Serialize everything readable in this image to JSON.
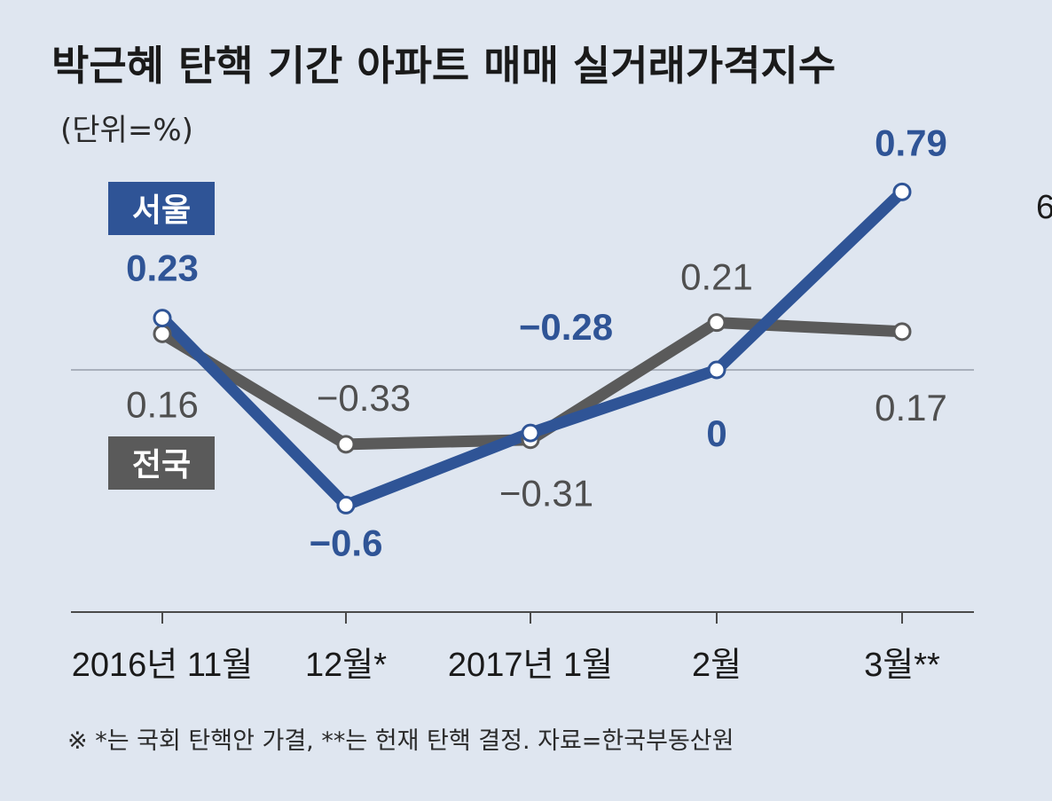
{
  "colors": {
    "background": "#dfe6f0",
    "seoul": "#2f5496",
    "nation": "#5a5a5a",
    "zero_line": "#a9b0bc",
    "axis": "#4a4a4a"
  },
  "edge_fragment": "6",
  "chart_data": {
    "type": "line",
    "title": "박근혜 탄핵 기간 아파트 매매 실거래가격지수",
    "subtitle": "(단위=%)",
    "categories": [
      "2016년 11월",
      "12월*",
      "2017년 1월",
      "2월",
      "3월**"
    ],
    "series": [
      {
        "name": "서울",
        "color": "#2f5496",
        "values": [
          0.23,
          -0.6,
          -0.28,
          0,
          0.79
        ],
        "labels": [
          "0.23",
          "−0.6",
          "−0.28",
          "0",
          "0.79"
        ]
      },
      {
        "name": "전국",
        "color": "#5a5a5a",
        "values": [
          0.16,
          -0.33,
          -0.31,
          0.21,
          0.17
        ],
        "labels": [
          "0.16",
          "−0.33",
          "−0.31",
          "0.21",
          "0.17"
        ]
      }
    ],
    "zero_line": true,
    "footnote": "※ *는 국회 탄핵안 가결, **는 헌재 탄핵 결정. 자료=한국부동산원"
  }
}
